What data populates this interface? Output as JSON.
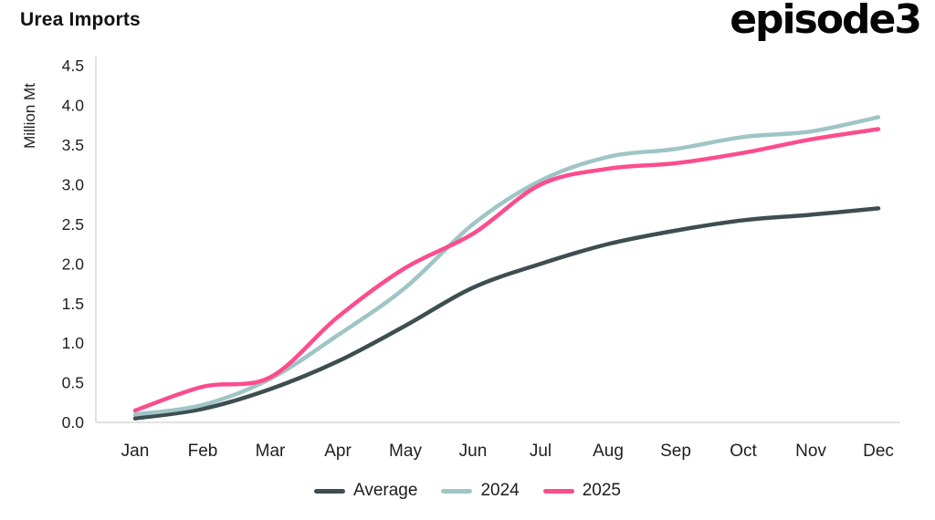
{
  "title": "Urea Imports",
  "brand": {
    "logo_text": "episode3"
  },
  "chart_data": {
    "type": "line",
    "title": "Urea Imports",
    "xlabel": "",
    "ylabel": "Million Mt",
    "categories": [
      "Jan",
      "Feb",
      "Mar",
      "Apr",
      "May",
      "Jun",
      "Jul",
      "Aug",
      "Sep",
      "Oct",
      "Nov",
      "Dec"
    ],
    "ylim": [
      0,
      4.5
    ],
    "yticks": [
      0,
      0.5,
      1,
      1.5,
      2,
      2.5,
      3,
      3.5,
      4,
      4.5
    ],
    "grid": false,
    "legend_position": "bottom",
    "axis_color": "#d9d9d9",
    "text_color": "#1f1f1f",
    "series": [
      {
        "name": "Average",
        "color": "#3e4e50",
        "values": [
          0.05,
          0.17,
          0.42,
          0.77,
          1.22,
          1.7,
          2.0,
          2.25,
          2.42,
          2.55,
          2.62,
          2.7
        ]
      },
      {
        "name": "2024",
        "color": "#9fc5c6",
        "values": [
          0.1,
          0.22,
          0.55,
          1.1,
          1.7,
          2.5,
          3.05,
          3.35,
          3.45,
          3.6,
          3.67,
          3.85
        ]
      },
      {
        "name": "2025",
        "color": "#fb4d8e",
        "values": [
          0.15,
          0.45,
          0.57,
          1.33,
          1.95,
          2.38,
          3.0,
          3.2,
          3.27,
          3.4,
          3.57,
          3.7
        ]
      }
    ]
  }
}
